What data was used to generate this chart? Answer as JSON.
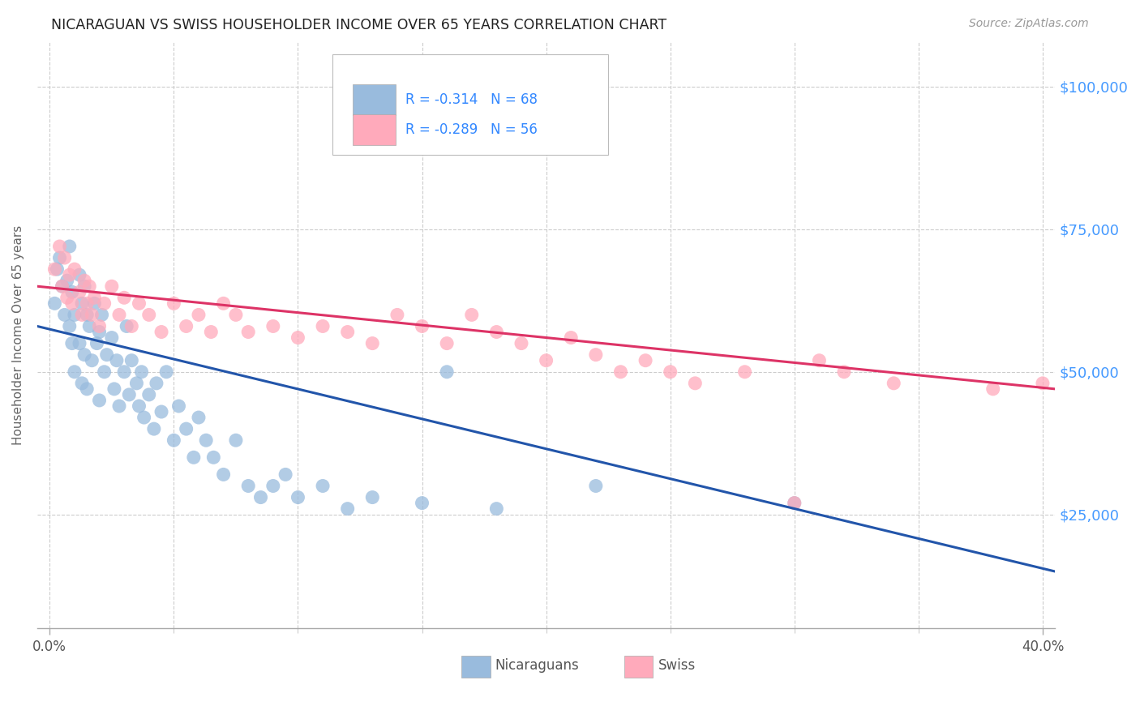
{
  "title": "NICARAGUAN VS SWISS HOUSEHOLDER INCOME OVER 65 YEARS CORRELATION CHART",
  "source": "Source: ZipAtlas.com",
  "ylabel": "Householder Income Over 65 years",
  "xlim": [
    -0.005,
    0.405
  ],
  "ylim": [
    5000,
    108000
  ],
  "ylabel_vals": [
    25000,
    50000,
    75000,
    100000
  ],
  "ylabel_ticks": [
    "$25,000",
    "$50,000",
    "$75,000",
    "$100,000"
  ],
  "xlabel_major": [
    0.0,
    0.4
  ],
  "xlabel_major_labels": [
    "0.0%",
    "40.0%"
  ],
  "xlabel_minor": [
    0.05,
    0.1,
    0.15,
    0.2,
    0.25,
    0.3,
    0.35
  ],
  "title_color": "#222222",
  "source_color": "#999999",
  "blue_color": "#99bbdd",
  "pink_color": "#ffaabb",
  "blue_line_color": "#2255aa",
  "pink_line_color": "#dd3366",
  "right_label_color": "#4499ff",
  "legend_text_color": "#3388ff",
  "grid_color": "#cccccc",
  "background_color": "#ffffff",
  "r_blue": -0.314,
  "n_blue": 68,
  "r_pink": -0.289,
  "n_pink": 56,
  "blue_line_y0": 58000,
  "blue_line_y1": 15000,
  "pink_line_y0": 65000,
  "pink_line_y1": 47000,
  "blue_x": [
    0.002,
    0.003,
    0.004,
    0.005,
    0.006,
    0.007,
    0.008,
    0.008,
    0.009,
    0.009,
    0.01,
    0.01,
    0.012,
    0.012,
    0.013,
    0.013,
    0.014,
    0.014,
    0.015,
    0.015,
    0.016,
    0.017,
    0.018,
    0.019,
    0.02,
    0.02,
    0.021,
    0.022,
    0.023,
    0.025,
    0.026,
    0.027,
    0.028,
    0.03,
    0.031,
    0.032,
    0.033,
    0.035,
    0.036,
    0.037,
    0.038,
    0.04,
    0.042,
    0.043,
    0.045,
    0.047,
    0.05,
    0.052,
    0.055,
    0.058,
    0.06,
    0.063,
    0.066,
    0.07,
    0.075,
    0.08,
    0.085,
    0.09,
    0.095,
    0.1,
    0.11,
    0.12,
    0.13,
    0.15,
    0.16,
    0.18,
    0.22,
    0.3
  ],
  "blue_y": [
    62000,
    68000,
    70000,
    65000,
    60000,
    66000,
    58000,
    72000,
    64000,
    55000,
    60000,
    50000,
    67000,
    55000,
    62000,
    48000,
    65000,
    53000,
    60000,
    47000,
    58000,
    52000,
    62000,
    55000,
    57000,
    45000,
    60000,
    50000,
    53000,
    56000,
    47000,
    52000,
    44000,
    50000,
    58000,
    46000,
    52000,
    48000,
    44000,
    50000,
    42000,
    46000,
    40000,
    48000,
    43000,
    50000,
    38000,
    44000,
    40000,
    35000,
    42000,
    38000,
    35000,
    32000,
    38000,
    30000,
    28000,
    30000,
    32000,
    28000,
    30000,
    26000,
    28000,
    27000,
    50000,
    26000,
    30000,
    27000
  ],
  "pink_x": [
    0.002,
    0.004,
    0.005,
    0.006,
    0.007,
    0.008,
    0.009,
    0.01,
    0.012,
    0.013,
    0.014,
    0.015,
    0.016,
    0.017,
    0.018,
    0.02,
    0.022,
    0.025,
    0.028,
    0.03,
    0.033,
    0.036,
    0.04,
    0.045,
    0.05,
    0.055,
    0.06,
    0.065,
    0.07,
    0.075,
    0.08,
    0.09,
    0.1,
    0.11,
    0.12,
    0.13,
    0.14,
    0.15,
    0.16,
    0.17,
    0.18,
    0.19,
    0.2,
    0.21,
    0.22,
    0.23,
    0.24,
    0.25,
    0.26,
    0.28,
    0.3,
    0.31,
    0.32,
    0.34,
    0.38,
    0.4
  ],
  "pink_y": [
    68000,
    72000,
    65000,
    70000,
    63000,
    67000,
    62000,
    68000,
    64000,
    60000,
    66000,
    62000,
    65000,
    60000,
    63000,
    58000,
    62000,
    65000,
    60000,
    63000,
    58000,
    62000,
    60000,
    57000,
    62000,
    58000,
    60000,
    57000,
    62000,
    60000,
    57000,
    58000,
    56000,
    58000,
    57000,
    55000,
    60000,
    58000,
    55000,
    60000,
    57000,
    55000,
    52000,
    56000,
    53000,
    50000,
    52000,
    50000,
    48000,
    50000,
    27000,
    52000,
    50000,
    48000,
    47000,
    48000
  ]
}
